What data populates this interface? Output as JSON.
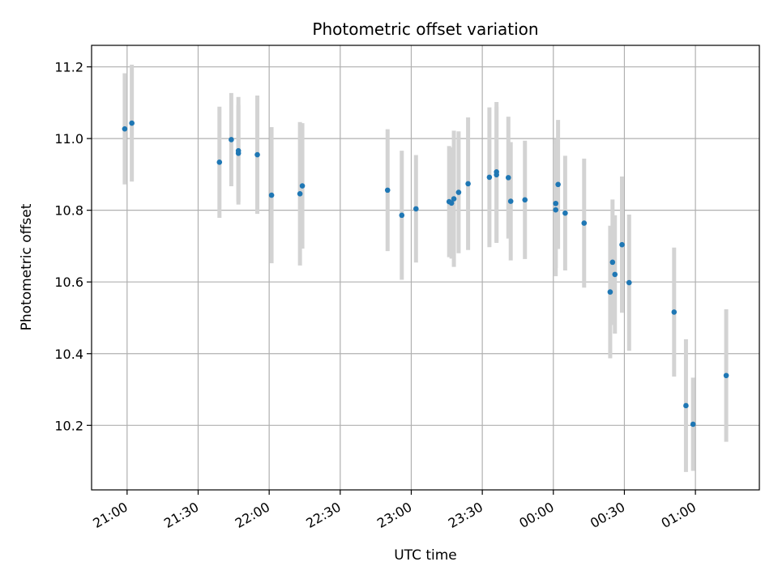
{
  "chart_data": {
    "type": "scatter",
    "title": "Photometric offset variation",
    "xlabel": "UTC time",
    "ylabel": "Photometric offset",
    "x_unit": "UTC clock time (HH:MM), crossing midnight",
    "xlim": [
      "20:45",
      "01:27"
    ],
    "ylim": [
      10.02,
      11.26
    ],
    "x_ticks": [
      "21:00",
      "21:30",
      "22:00",
      "22:30",
      "23:00",
      "23:30",
      "00:00",
      "00:30",
      "01:00"
    ],
    "y_ticks": [
      "10.2",
      "10.4",
      "10.6",
      "10.8",
      "11.0",
      "11.2"
    ],
    "y_tick_values": [
      10.2,
      10.4,
      10.6,
      10.8,
      11.0,
      11.2
    ],
    "grid": true,
    "series": [
      {
        "color": "#1f77b4",
        "errorbar_color": "#d3d3d3",
        "points": [
          {
            "x": "20:59",
            "y": 11.027,
            "err": 0.155
          },
          {
            "x": "21:02",
            "y": 11.043,
            "err": 0.163
          },
          {
            "x": "21:39",
            "y": 10.934,
            "err": 0.155
          },
          {
            "x": "21:44",
            "y": 10.997,
            "err": 0.13
          },
          {
            "x": "21:47",
            "y": 10.959,
            "err": 0.135
          },
          {
            "x": "21:47",
            "y": 10.966,
            "err": 0.15
          },
          {
            "x": "21:55",
            "y": 10.955,
            "err": 0.165
          },
          {
            "x": "22:01",
            "y": 10.842,
            "err": 0.19
          },
          {
            "x": "22:13",
            "y": 10.846,
            "err": 0.2
          },
          {
            "x": "22:14",
            "y": 10.868,
            "err": 0.175
          },
          {
            "x": "22:50",
            "y": 10.856,
            "err": 0.17
          },
          {
            "x": "22:56",
            "y": 10.786,
            "err": 0.18
          },
          {
            "x": "23:02",
            "y": 10.804,
            "err": 0.15
          },
          {
            "x": "23:16",
            "y": 10.824,
            "err": 0.155
          },
          {
            "x": "23:17",
            "y": 10.82,
            "err": 0.155
          },
          {
            "x": "23:18",
            "y": 10.832,
            "err": 0.19
          },
          {
            "x": "23:20",
            "y": 10.85,
            "err": 0.17
          },
          {
            "x": "23:24",
            "y": 10.874,
            "err": 0.185
          },
          {
            "x": "23:33",
            "y": 10.892,
            "err": 0.195
          },
          {
            "x": "23:36",
            "y": 10.907,
            "err": 0.195
          },
          {
            "x": "23:36",
            "y": 10.899,
            "err": 0.19
          },
          {
            "x": "23:41",
            "y": 10.891,
            "err": 0.17
          },
          {
            "x": "23:42",
            "y": 10.825,
            "err": 0.165
          },
          {
            "x": "23:48",
            "y": 10.829,
            "err": 0.165
          },
          {
            "x": "00:01",
            "y": 10.801,
            "err": 0.185
          },
          {
            "x": "00:01",
            "y": 10.819,
            "err": 0.18
          },
          {
            "x": "00:02",
            "y": 10.872,
            "err": 0.18
          },
          {
            "x": "00:05",
            "y": 10.792,
            "err": 0.16
          },
          {
            "x": "00:13",
            "y": 10.764,
            "err": 0.18
          },
          {
            "x": "00:24",
            "y": 10.572,
            "err": 0.185
          },
          {
            "x": "00:25",
            "y": 10.655,
            "err": 0.175
          },
          {
            "x": "00:26",
            "y": 10.621,
            "err": 0.165
          },
          {
            "x": "00:29",
            "y": 10.704,
            "err": 0.19
          },
          {
            "x": "00:32",
            "y": 10.598,
            "err": 0.19
          },
          {
            "x": "00:51",
            "y": 10.516,
            "err": 0.18
          },
          {
            "x": "00:56",
            "y": 10.255,
            "err": 0.185
          },
          {
            "x": "00:59",
            "y": 10.203,
            "err": 0.13
          },
          {
            "x": "01:13",
            "y": 10.339,
            "err": 0.185
          }
        ]
      }
    ]
  }
}
